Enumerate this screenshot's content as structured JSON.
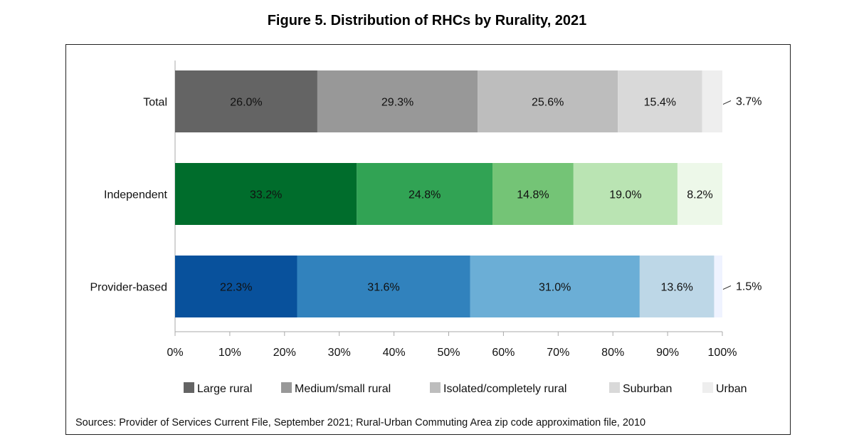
{
  "chart_data": {
    "type": "bar",
    "orientation": "horizontal",
    "stacked": true,
    "title": "Figure 5. Distribution of RHCs by Rurality, 2021",
    "categories": [
      "Total",
      "Independent",
      "Provider-based"
    ],
    "series_names": [
      "Large rural",
      "Medium/small rural",
      "Isolated/completely rural",
      "Suburban",
      "Urban"
    ],
    "values": [
      [
        26.0,
        29.3,
        25.6,
        15.4,
        3.7
      ],
      [
        33.2,
        24.8,
        14.8,
        19.0,
        8.2
      ],
      [
        22.3,
        31.6,
        31.0,
        13.6,
        1.5
      ]
    ],
    "data_labels": [
      [
        "26.0%",
        "29.3%",
        "25.6%",
        "15.4%",
        "3.7%"
      ],
      [
        "33.2%",
        "24.8%",
        "14.8%",
        "19.0%",
        "8.2%"
      ],
      [
        "22.3%",
        "31.6%",
        "31.0%",
        "13.6%",
        "1.5%"
      ]
    ],
    "colors": [
      [
        "#646464",
        "#989898",
        "#bdbdbd",
        "#d9d9d9",
        "#eeeeee"
      ],
      [
        "#006d2c",
        "#31a354",
        "#74c476",
        "#bae4b3",
        "#edf8e9"
      ],
      [
        "#08519c",
        "#3182bd",
        "#6baed6",
        "#bdd7e7",
        "#eff3ff"
      ]
    ],
    "xlim": [
      0,
      100
    ],
    "x_ticks": [
      "0%",
      "10%",
      "20%",
      "30%",
      "40%",
      "50%",
      "60%",
      "70%",
      "80%",
      "90%",
      "100%"
    ],
    "grid": false,
    "legend_placement": "bottom",
    "legend_colors": [
      "#646464",
      "#989898",
      "#bdbdbd",
      "#d9d9d9",
      "#eeeeee"
    ],
    "source": "Sources: Provider of Services Current File, September 2021; Rural-Urban Commuting Area zip code approximation file, 2010"
  }
}
